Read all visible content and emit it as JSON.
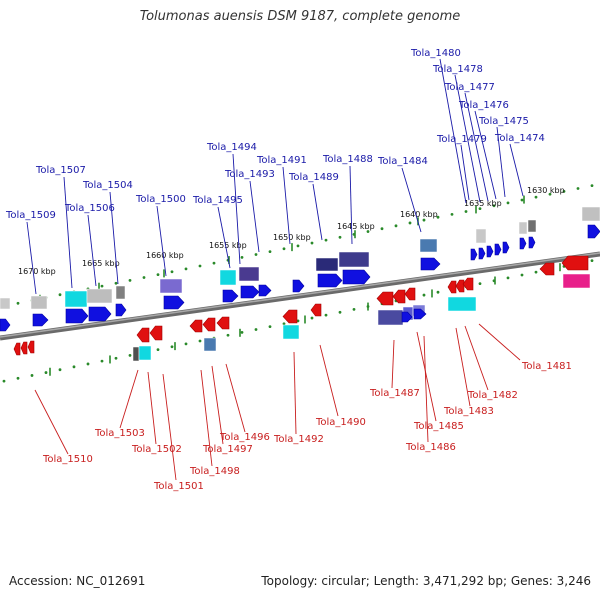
{
  "title": "Tolumonas auensis DSM 9187, complete genome",
  "footer": {
    "accession": "Accession: NC_012691",
    "stats": "Topology: circular; Length: 3,471,292 bp; Genes: 3,246"
  },
  "colors": {
    "forward_label": "#1a1aa8",
    "reverse_label": "#c81e1e",
    "forward_arrow": "#1010e0",
    "reverse_arrow": "#e01010",
    "backbone": "#8a8a8a",
    "tick": "#2a8a2a"
  },
  "scale_labels": [
    "1630 kbp",
    "1635 kbp",
    "1640 kbp",
    "1645 kbp",
    "1650 kbp",
    "1655 kbp",
    "1660 kbp",
    "1665 kbp",
    "1670 kbp"
  ],
  "top_labels": [
    "Tola_1480",
    "Tola_1478",
    "Tola_1477",
    "Tola_1476",
    "Tola_1475",
    "Tola_1474",
    "Tola_1479",
    "Tola_1488",
    "Tola_1484",
    "Tola_1494",
    "Tola_1491",
    "Tola_1493",
    "Tola_1489",
    "Tola_1507",
    "Tola_1504",
    "Tola_1500",
    "Tola_1495",
    "Tola_1506",
    "Tola_1509"
  ],
  "bottom_labels": [
    "Tola_1481",
    "Tola_1482",
    "Tola_1483",
    "Tola_1487",
    "Tola_1485",
    "Tola_1486",
    "Tola_1490",
    "Tola_1492",
    "Tola_1496",
    "Tola_1497",
    "Tola_1498",
    "Tola_1503",
    "Tola_1502",
    "Tola_1501",
    "Tola_1510"
  ]
}
